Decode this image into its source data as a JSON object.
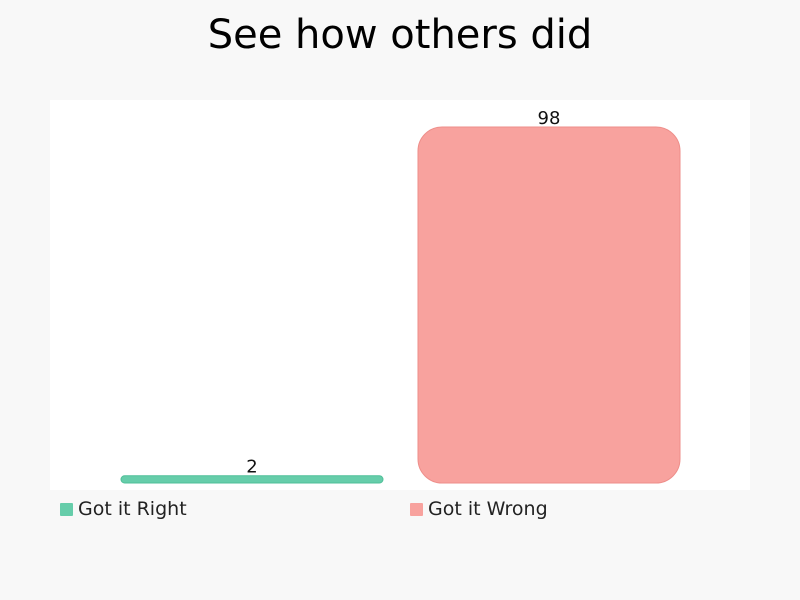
{
  "chart_data": {
    "type": "bar",
    "title": "See how others did",
    "categories": [
      "Got it Right",
      "Got it Wrong"
    ],
    "values": [
      2,
      98
    ],
    "ylim": [
      0,
      98
    ],
    "colors": [
      "#66cdaa",
      "#f8a29e"
    ],
    "data_labels": [
      "2",
      "98"
    ],
    "grid": false,
    "axes_visible": false,
    "legend": {
      "placement": "bottom",
      "entries": [
        "Got it Right",
        "Got it Wrong"
      ]
    }
  }
}
